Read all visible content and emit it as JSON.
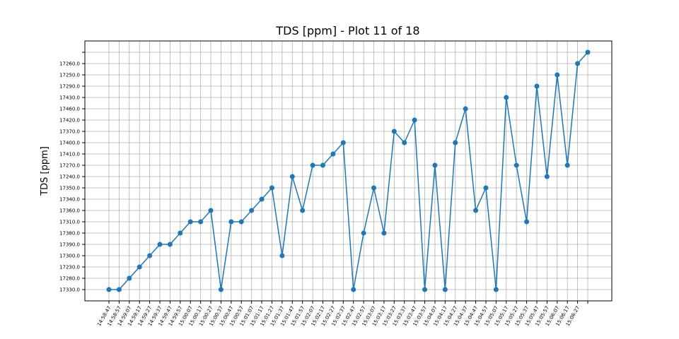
{
  "chart_data": {
    "type": "line",
    "title": "TDS [ppm] - Plot 11 of 18",
    "y_label": "TDS [ppm]",
    "grid": true,
    "marker": "circle",
    "categories": [
      "14:58:47",
      "14:58:57",
      "14:59:07",
      "14:59:17",
      "14:59:27",
      "14:59:37",
      "14:59:47",
      "14:59:57",
      "15:00:07",
      "15:00:17",
      "15:00:27",
      "15:00:37",
      "15:00:47",
      "15:00:57",
      "15:01:07",
      "15:01:17",
      "15:01:27",
      "15:01:37",
      "15:01:47",
      "15:01:57",
      "15:02:07",
      "15:02:17",
      "15:02:27",
      "15:02:37",
      "15:02:47",
      "15:02:57",
      "15:03:07",
      "15:03:17",
      "15:03:27",
      "15:03:37",
      "15:03:47",
      "15:03:57",
      "15:04:07",
      "15:04:17",
      "15:04:27",
      "15:04:37",
      "15:04:47",
      "15:04:57",
      "15:05:07",
      "15:05:17",
      "15:05:27",
      "15:05:37",
      "15:05:47",
      "15:05:57",
      "15:06:07",
      "15:06:17",
      "15:06:27",
      null
    ],
    "ycategories": [
      {
        "value": 17330,
        "label": "17330.0"
      },
      {
        "value": 17280,
        "label": "17280.0"
      },
      {
        "value": 17230,
        "label": "17230.0"
      },
      {
        "value": 17300,
        "label": "17300.0"
      },
      {
        "value": 17390,
        "label": "17390.0"
      },
      {
        "value": 17380,
        "label": "17380.0"
      },
      {
        "value": 17310,
        "label": "17310.0"
      },
      {
        "value": 17360,
        "label": "17360.0"
      },
      {
        "value": 17340,
        "label": "17340.0"
      },
      {
        "value": 17350,
        "label": "17350.0"
      },
      {
        "value": 17240,
        "label": "17240.0"
      },
      {
        "value": 17270,
        "label": "17270.0"
      },
      {
        "value": 17410,
        "label": "17410.0"
      },
      {
        "value": 17400,
        "label": "17400.0"
      },
      {
        "value": 17370,
        "label": "17370.0"
      },
      {
        "value": 17420,
        "label": "17420.0"
      },
      {
        "value": 17460,
        "label": "17460.0"
      },
      {
        "value": 17430,
        "label": "17430.0"
      },
      {
        "value": 17290,
        "label": "17290.0"
      },
      {
        "value": 17250,
        "label": "17250.0"
      },
      {
        "value": 17260,
        "label": "17260.0"
      },
      {
        "value": null,
        "label": null
      }
    ],
    "series": [
      {
        "name": "TDS [ppm]",
        "color": "#1f77b4",
        "values": [
          17330,
          17330,
          17280,
          17230,
          17300,
          17390,
          17390,
          17380,
          17310,
          17310,
          17360,
          17330,
          17310,
          17310,
          17360,
          17340,
          17350,
          17300,
          17240,
          17360,
          17270,
          17270,
          17410,
          17400,
          17330,
          17380,
          17350,
          17380,
          17370,
          17400,
          17420,
          17330,
          17270,
          17330,
          17400,
          17460,
          17360,
          17350,
          17330,
          17430,
          17270,
          17310,
          17290,
          17240,
          17250,
          17270,
          17260,
          null
        ]
      }
    ]
  }
}
